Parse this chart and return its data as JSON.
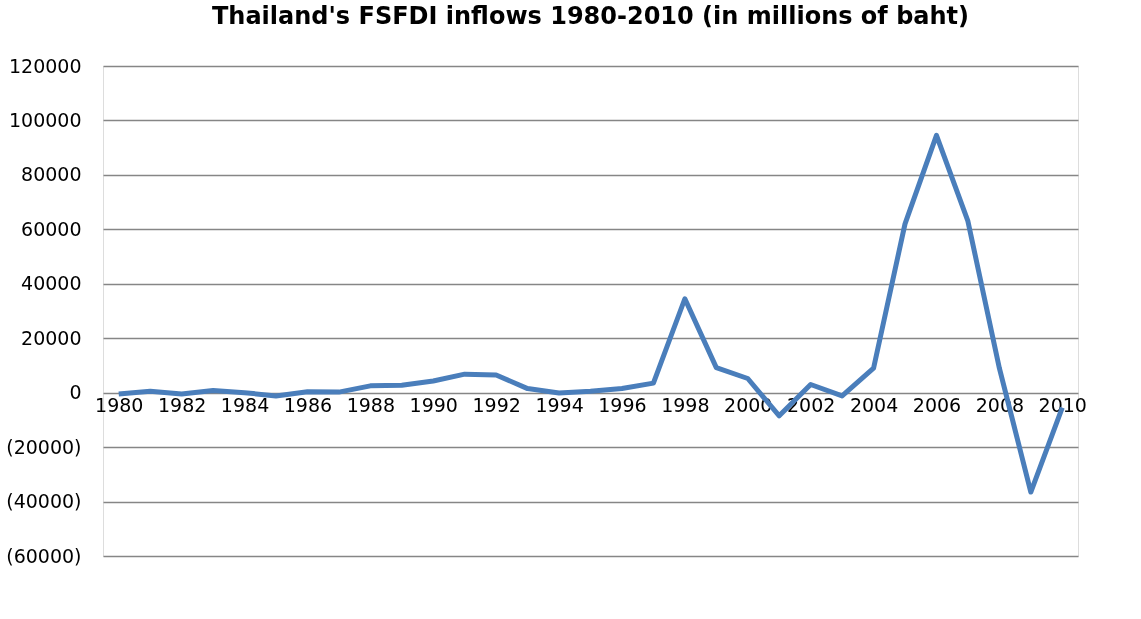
{
  "chart_data": {
    "type": "line",
    "title": "Thailand's FSFDI inflows 1980-2010 (in millions of baht)",
    "categories": [
      "1980",
      null,
      "1982",
      null,
      "1984",
      null,
      "1986",
      null,
      "1988",
      null,
      "1990",
      null,
      "1992",
      null,
      "1994",
      null,
      "1996",
      null,
      "1998",
      null,
      "2000",
      null,
      "2002",
      null,
      "2004",
      null,
      "2006",
      null,
      "2008",
      null,
      "2010"
    ],
    "series": [
      {
        "color": "#4a7ebb",
        "values": [
          -500,
          500,
          -500,
          800,
          0,
          -1200,
          300,
          200,
          2500,
          2700,
          4300,
          6800,
          6500,
          1500,
          -100,
          500,
          1500,
          3500,
          34500,
          9200,
          5200,
          -8500,
          3000,
          -1200,
          9000,
          62000,
          94500,
          63000,
          9000,
          -36500,
          -5500
        ]
      }
    ],
    "ylim": [
      -60000,
      120000
    ],
    "yticks": [
      {
        "value": -60000,
        "label": "(60000)"
      },
      {
        "value": -40000,
        "label": "(40000)"
      },
      {
        "value": -20000,
        "label": "(20000)"
      },
      0,
      20000,
      40000,
      60000,
      80000,
      100000,
      120000
    ],
    "grid": "y",
    "marker": "none",
    "line_style": "solid"
  }
}
